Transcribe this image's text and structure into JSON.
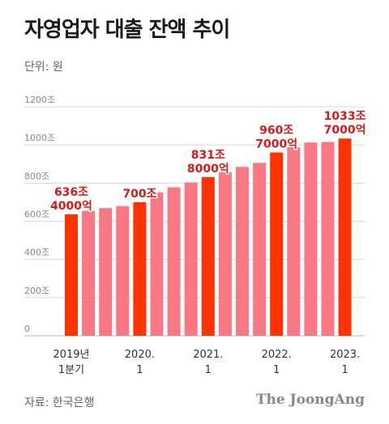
{
  "header": {
    "title": "자영업자 대출 잔액 추이",
    "unit": "단위: 원"
  },
  "footer": {
    "source": "자료: 한국은행",
    "brand": "The JoongAng"
  },
  "colors": {
    "highlight": "#ff3300",
    "normal": "#fa7884",
    "label": "#d41a1a",
    "grid": "#d8d8d8",
    "axis_text": "#888888"
  },
  "chart_data": {
    "type": "bar",
    "title": "자영업자 대출 잔액 추이",
    "ylabel": "단위: 원",
    "ylim": [
      0,
      1200
    ],
    "yticks": [
      "0",
      "200조",
      "400조",
      "600조",
      "800조",
      "1000조",
      "1200조"
    ],
    "grid": true,
    "x_labels": [
      {
        "index": 0,
        "lines": [
          "2019년",
          "1분기"
        ]
      },
      {
        "index": 4,
        "lines": [
          "2020.",
          "1"
        ]
      },
      {
        "index": 8,
        "lines": [
          "2021.",
          "1"
        ]
      },
      {
        "index": 12,
        "lines": [
          "2022.",
          "1"
        ]
      },
      {
        "index": 16,
        "lines": [
          "2023.",
          "1"
        ]
      }
    ],
    "values": [
      636.4,
      655,
      669,
      680,
      700,
      752,
      778,
      804,
      831.8,
      857,
      885,
      906,
      960.7,
      988,
      1013,
      1016,
      1033.7
    ],
    "highlighted": [
      0,
      4,
      8,
      12,
      16
    ],
    "data_labels": [
      {
        "index": 0,
        "lines": [
          "636조",
          "4000억"
        ]
      },
      {
        "index": 4,
        "lines": [
          "700조"
        ]
      },
      {
        "index": 8,
        "lines": [
          "831조",
          "8000억"
        ]
      },
      {
        "index": 12,
        "lines": [
          "960조",
          "7000억"
        ]
      },
      {
        "index": 16,
        "lines": [
          "1033조",
          "7000억"
        ]
      }
    ]
  }
}
